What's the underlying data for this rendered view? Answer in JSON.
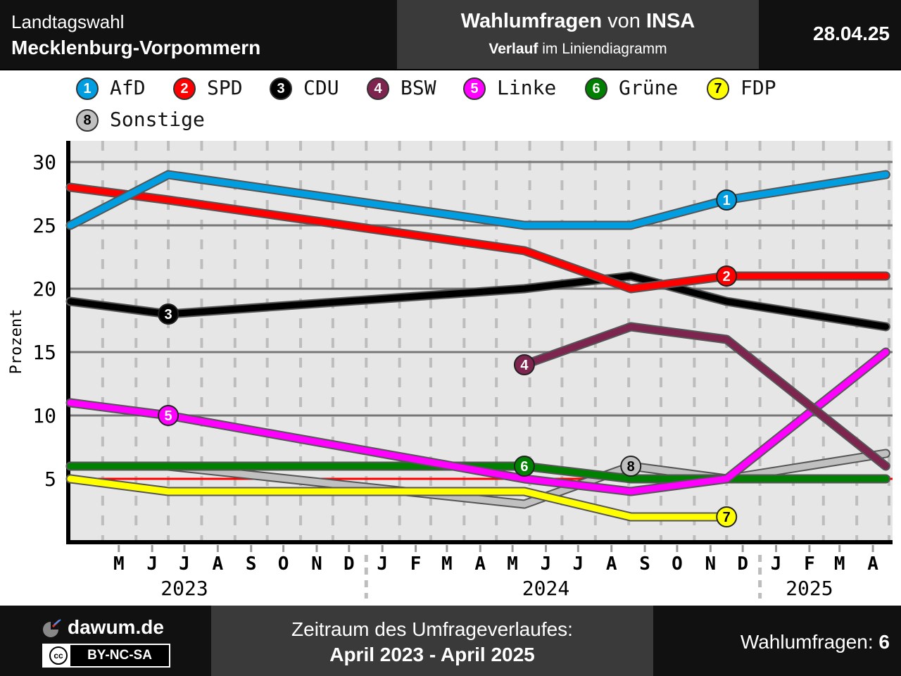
{
  "header": {
    "line1": "Landtagswahl",
    "line2": "Mecklenburg-Vorpommern",
    "title_bold": "Wahlumfragen",
    "title_mid": "von",
    "title_inst": "INSA",
    "sub_bold": "Verlauf",
    "sub_rest": "im Liniendiagramm",
    "date": "28.04.25"
  },
  "footer": {
    "brand": "dawum.de",
    "license_symbol": "cc",
    "license": "BY-NC-SA",
    "period_label": "Zeitraum des Umfrageverlaufes:",
    "period": "April 2023 - April 2025",
    "count_label": "Wahlumfragen:",
    "count": "6"
  },
  "legend": [
    {
      "num": "1",
      "name": "AfD",
      "color": "#009ee0",
      "text": "#ffffff"
    },
    {
      "num": "2",
      "name": "SPD",
      "color": "#ff0000",
      "text": "#ffffff"
    },
    {
      "num": "3",
      "name": "CDU",
      "color": "#000000",
      "text": "#ffffff"
    },
    {
      "num": "4",
      "name": "BSW",
      "color": "#7d254f",
      "text": "#ffffff"
    },
    {
      "num": "5",
      "name": "Linke",
      "color": "#ff00ff",
      "text": "#ffffff"
    },
    {
      "num": "6",
      "name": "Grüne",
      "color": "#008000",
      "text": "#ffffff"
    },
    {
      "num": "7",
      "name": "FDP",
      "color": "#ffff00",
      "text": "#000000"
    },
    {
      "num": "8",
      "name": "Sonstige",
      "color": "#c0c0c0",
      "text": "#000000"
    }
  ],
  "chart_data": {
    "type": "line",
    "ylabel": "Prozent",
    "ylim": [
      0,
      31
    ],
    "yticks": [
      5,
      10,
      15,
      20,
      25,
      30
    ],
    "x_range": [
      "2023-04-01",
      "2025-05-01"
    ],
    "month_labels": [
      "M",
      "J",
      "J",
      "A",
      "S",
      "O",
      "N",
      "D",
      "J",
      "F",
      "M",
      "A",
      "M",
      "J",
      "J",
      "A",
      "S",
      "O",
      "N",
      "D",
      "J",
      "F",
      "M",
      "A"
    ],
    "years": [
      {
        "label": "2023",
        "center_month": "2023-07-16"
      },
      {
        "label": "2024",
        "center_month": "2024-06-16"
      },
      {
        "label": "2025",
        "center_month": "2025-02-16"
      }
    ],
    "year_separators": [
      "2024-01-01",
      "2025-01-01"
    ],
    "polls": [
      "2023-04-01",
      "2023-07-01",
      "2024-05-27",
      "2024-09-03",
      "2024-12-01",
      "2025-04-28"
    ],
    "series": [
      {
        "name": "AfD",
        "num": "1",
        "color": "#009ee0",
        "values": [
          25,
          29,
          25,
          25,
          27,
          29
        ],
        "marker": 4
      },
      {
        "name": "SPD",
        "num": "2",
        "color": "#ff0000",
        "values": [
          28,
          27,
          23,
          20,
          21,
          21
        ],
        "marker": 4
      },
      {
        "name": "CDU",
        "num": "3",
        "color": "#000000",
        "values": [
          19,
          18,
          20,
          21,
          19,
          17
        ],
        "marker": 1
      },
      {
        "name": "BSW",
        "num": "4",
        "color": "#7d254f",
        "values": [
          null,
          null,
          14,
          17,
          16,
          6
        ],
        "marker": 2
      },
      {
        "name": "Linke",
        "num": "5",
        "color": "#ff00ff",
        "values": [
          11,
          10,
          5,
          4,
          5,
          15
        ],
        "marker": 1
      },
      {
        "name": "Grüne",
        "num": "6",
        "color": "#008000",
        "values": [
          6,
          6,
          6,
          5,
          5,
          5
        ],
        "marker": 2
      },
      {
        "name": "FDP",
        "num": "7",
        "color": "#ffff00",
        "values": [
          5,
          4,
          4,
          2,
          2,
          null
        ],
        "marker": 4
      },
      {
        "name": "Sonstige",
        "num": "8",
        "color": "#c0c0c0",
        "values": [
          6,
          6,
          3,
          6,
          5,
          7
        ],
        "marker": 3
      }
    ],
    "threshold": 5
  }
}
